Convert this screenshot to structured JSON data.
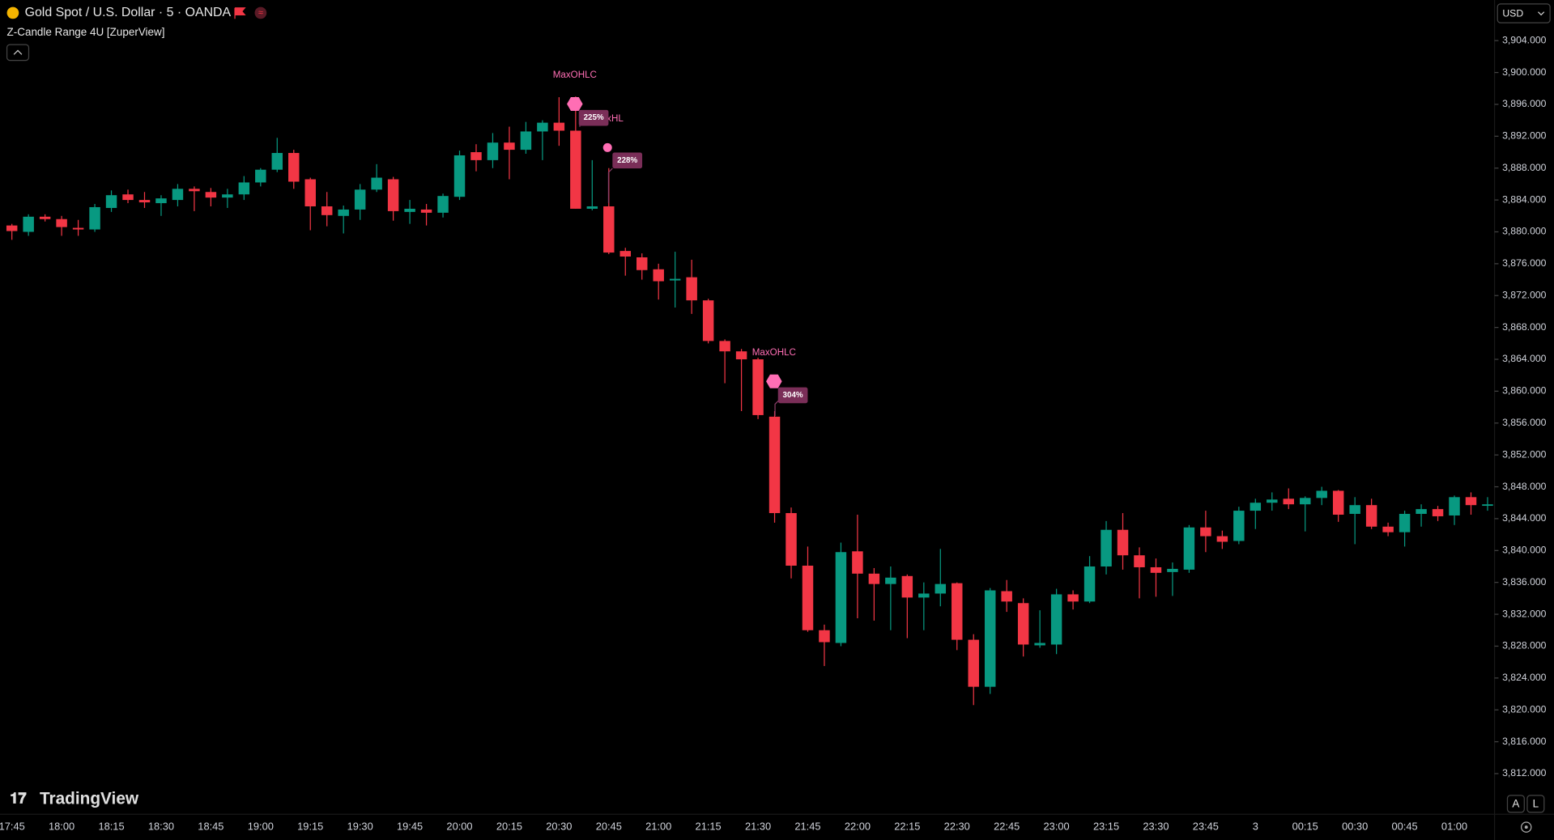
{
  "chart_data": {
    "type": "candlestick",
    "title": "Gold Spot / U.S. Dollar · 5 · OANDA",
    "indicator": "Z-Candle Range 4U [ZuperView]",
    "currency": "USD",
    "watermark": "TradingView",
    "buttons": [
      "A",
      "L"
    ],
    "up_color": "#089981",
    "down_color": "#f23645",
    "categories": [
      "17:45",
      null,
      null,
      "18:00",
      null,
      null,
      "18:15",
      null,
      null,
      "18:30",
      null,
      null,
      "18:45",
      null,
      null,
      "19:00",
      null,
      null,
      "19:15",
      null,
      null,
      "19:30",
      null,
      null,
      "19:45",
      null,
      null,
      "20:00",
      null,
      null,
      "20:15",
      null,
      null,
      "20:30",
      null,
      null,
      "20:45",
      null,
      null,
      "21:00",
      null,
      null,
      "21:15",
      null,
      null,
      "21:30",
      null,
      null,
      "21:45",
      null,
      null,
      "22:00",
      null,
      null,
      "22:15",
      null,
      null,
      "22:30",
      null,
      null,
      "22:45",
      null,
      null,
      "23:00",
      null,
      null,
      "23:15",
      null,
      null,
      "23:30",
      null,
      null,
      "23:45",
      null,
      null,
      "3",
      null,
      null,
      "00:15",
      null,
      null,
      "00:30",
      null,
      null,
      "00:45",
      null,
      null,
      "01:00",
      null,
      null
    ],
    "open": [
      3880.8,
      3880.0,
      3881.9,
      3881.6,
      3880.5,
      3880.3,
      3883.0,
      3884.7,
      3884.0,
      3883.6,
      3884.0,
      3885.4,
      3885.0,
      3884.3,
      3884.7,
      3886.2,
      3887.8,
      3889.9,
      3886.6,
      3883.2,
      3882.0,
      3882.8,
      3885.3,
      3886.6,
      3882.5,
      3882.8,
      3882.4,
      3884.4,
      3890.0,
      3889.0,
      3891.2,
      3890.3,
      3892.6,
      3893.7,
      3892.7,
      3882.9,
      3883.2,
      3877.6,
      3876.8,
      3875.3,
      3873.9,
      3874.3,
      3871.4,
      3866.3,
      3865.0,
      3864.0,
      3856.8,
      3844.7,
      3838.1,
      3830.0,
      3828.4,
      3839.9,
      3837.1,
      3835.8,
      3836.8,
      3834.1,
      3834.6,
      3835.9,
      3828.8,
      3822.9,
      3834.9,
      3833.4,
      3828.1,
      3828.2,
      3834.5,
      3833.6,
      3838.0,
      3842.6,
      3839.4,
      3837.9,
      3837.3,
      3837.6,
      3842.9,
      3841.8,
      3841.2,
      3845.0,
      3846.0,
      3846.5,
      3845.8,
      3846.6,
      3847.5,
      3844.6,
      3845.7,
      3843.0,
      3842.3,
      3844.6,
      3845.2,
      3844.4,
      3846.7,
      3845.7
    ],
    "high": [
      3881.0,
      3882.2,
      3882.2,
      3882.0,
      3881.5,
      3883.5,
      3885.2,
      3885.3,
      3885.0,
      3884.6,
      3886.0,
      3885.7,
      3885.5,
      3885.4,
      3887.0,
      3888.0,
      3891.8,
      3890.3,
      3886.8,
      3885.0,
      3883.3,
      3886.0,
      3888.5,
      3886.9,
      3884.0,
      3883.5,
      3884.8,
      3890.2,
      3891.0,
      3892.4,
      3893.2,
      3893.8,
      3894.0,
      3896.9,
      3897.0,
      3889.0,
      3888.0,
      3878.0,
      3877.3,
      3876.0,
      3877.5,
      3876.5,
      3871.6,
      3866.5,
      3865.3,
      3864.2,
      3857.5,
      3845.4,
      3840.5,
      3830.7,
      3841.0,
      3844.5,
      3837.8,
      3838.0,
      3837.0,
      3836.0,
      3840.2,
      3836.0,
      3829.5,
      3835.3,
      3836.3,
      3834.0,
      3832.5,
      3835.2,
      3835.0,
      3839.3,
      3843.7,
      3844.7,
      3840.4,
      3839.0,
      3838.5,
      3843.2,
      3845.0,
      3842.5,
      3845.5,
      3846.5,
      3847.3,
      3847.8,
      3846.8,
      3848.0,
      3847.6,
      3846.7,
      3846.5,
      3843.5,
      3845.0,
      3845.8,
      3845.6,
      3846.9,
      3847.3,
      3846.7
    ],
    "low": [
      3879.0,
      3879.5,
      3881.3,
      3879.5,
      3879.5,
      3880.0,
      3882.5,
      3883.6,
      3883.0,
      3882.0,
      3883.2,
      3882.6,
      3883.2,
      3883.0,
      3884.0,
      3885.7,
      3887.5,
      3885.4,
      3880.2,
      3880.7,
      3879.8,
      3881.5,
      3885.0,
      3881.4,
      3881.0,
      3880.8,
      3881.8,
      3884.0,
      3887.6,
      3888.0,
      3886.6,
      3889.8,
      3889.0,
      3890.8,
      3882.9,
      3882.7,
      3877.2,
      3874.5,
      3874.0,
      3871.5,
      3870.5,
      3869.7,
      3866.0,
      3861.0,
      3857.5,
      3856.5,
      3843.5,
      3836.5,
      3829.8,
      3825.5,
      3828.0,
      3831.5,
      3831.2,
      3830.0,
      3829.0,
      3830.0,
      3833.0,
      3827.5,
      3820.6,
      3822.0,
      3832.3,
      3826.7,
      3827.8,
      3827.0,
      3832.6,
      3833.4,
      3837.0,
      3837.6,
      3834.0,
      3834.2,
      3834.3,
      3837.2,
      3839.8,
      3840.2,
      3840.8,
      3842.7,
      3845.0,
      3845.2,
      3842.4,
      3845.7,
      3843.6,
      3840.8,
      3842.7,
      3841.8,
      3840.5,
      3843.0,
      3843.7,
      3843.2,
      3844.5,
      3845.0
    ],
    "close": [
      3880.1,
      3881.9,
      3881.6,
      3880.6,
      3880.3,
      3883.1,
      3884.6,
      3884.0,
      3883.7,
      3884.2,
      3885.4,
      3885.1,
      3884.3,
      3884.7,
      3886.2,
      3887.8,
      3889.9,
      3886.3,
      3883.2,
      3882.1,
      3882.8,
      3885.3,
      3886.8,
      3882.6,
      3882.9,
      3882.4,
      3884.5,
      3889.6,
      3889.0,
      3891.2,
      3890.3,
      3892.6,
      3893.7,
      3892.7,
      3882.9,
      3883.2,
      3877.4,
      3876.9,
      3875.2,
      3873.8,
      3874.1,
      3871.4,
      3866.3,
      3865.0,
      3864.0,
      3857.0,
      3844.7,
      3838.1,
      3830.0,
      3828.5,
      3839.8,
      3837.1,
      3835.8,
      3836.6,
      3834.1,
      3834.6,
      3835.8,
      3828.8,
      3822.9,
      3835.0,
      3833.6,
      3828.2,
      3828.4,
      3834.5,
      3833.6,
      3838.0,
      3842.6,
      3839.4,
      3837.9,
      3837.2,
      3837.7,
      3842.9,
      3841.8,
      3841.1,
      3845.0,
      3846.0,
      3846.4,
      3845.8,
      3846.6,
      3847.5,
      3844.5,
      3845.7,
      3843.0,
      3842.3,
      3844.6,
      3845.2,
      3844.3,
      3846.7,
      3845.7,
      3845.8
    ],
    "ylim": [
      3806.9,
      3909.1
    ],
    "yticks": [
      {
        "value": 3812,
        "label": "3,812.000"
      },
      {
        "value": 3816,
        "label": "3,816.000"
      },
      {
        "value": 3820,
        "label": "3,820.000"
      },
      {
        "value": 3824,
        "label": "3,824.000"
      },
      {
        "value": 3828,
        "label": "3,828.000"
      },
      {
        "value": 3832,
        "label": "3,832.000"
      },
      {
        "value": 3836,
        "label": "3,836.000"
      },
      {
        "value": 3840,
        "label": "3,840.000"
      },
      {
        "value": 3844,
        "label": "3,844.000"
      },
      {
        "value": 3848,
        "label": "3,848.000"
      },
      {
        "value": 3852,
        "label": "3,852.000"
      },
      {
        "value": 3856,
        "label": "3,856.000"
      },
      {
        "value": 3860,
        "label": "3,860.000"
      },
      {
        "value": 3864,
        "label": "3,864.000"
      },
      {
        "value": 3868,
        "label": "3,868.000"
      },
      {
        "value": 3872,
        "label": "3,872.000"
      },
      {
        "value": 3876,
        "label": "3,876.000"
      },
      {
        "value": 3880,
        "label": "3,880.000"
      },
      {
        "value": 3884,
        "label": "3,884.000"
      },
      {
        "value": 3888,
        "label": "3,888.000"
      },
      {
        "value": 3892,
        "label": "3,892.000"
      },
      {
        "value": 3896,
        "label": "3,896.000"
      },
      {
        "value": 3900,
        "label": "3,900.000"
      },
      {
        "value": 3904,
        "label": "3,904.000"
      }
    ],
    "grid": false,
    "annotations": [
      "MaxOHLC",
      "MaxHL",
      "225%",
      "228%",
      "MaxOHLC",
      "304%"
    ]
  }
}
